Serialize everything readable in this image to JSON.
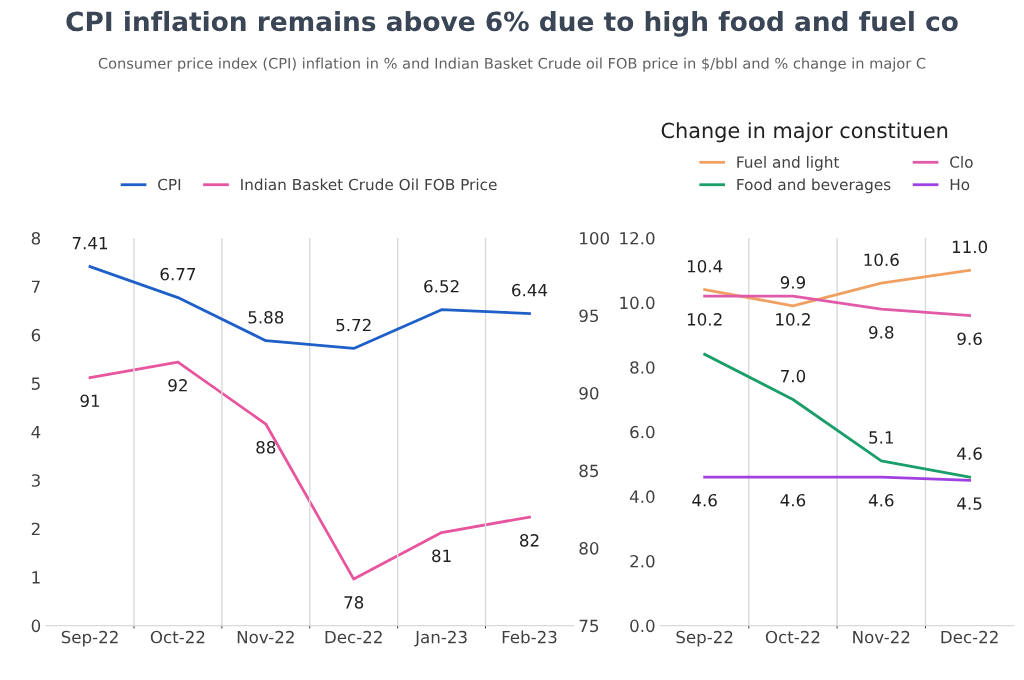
{
  "chart_data": [
    {
      "type": "line",
      "title": "CPI inflation remains above 6% due to high food and fuel co",
      "subtitle": "Consumer price index (CPI) inflation in % and Indian Basket Crude oil FOB price in $/bbl and % change in major C",
      "categories": [
        "Sep-22",
        "Oct-22",
        "Nov-22",
        "Dec-22",
        "Jan-23",
        "Feb-23"
      ],
      "series": [
        {
          "name": "CPI",
          "color": "#1f5fc8",
          "values": [
            7.41,
            6.77,
            5.88,
            5.72,
            6.52,
            6.44
          ]
        },
        {
          "name": "Indian Basket Crude Oil FOB Price",
          "color": "#e8559f",
          "axis": "y2",
          "values": [
            91,
            92,
            88,
            78,
            81,
            82
          ]
        }
      ],
      "ylim": [
        0,
        8
      ],
      "yticks": [
        0,
        1,
        2,
        3,
        4,
        5,
        6,
        7,
        8
      ],
      "y2lim": [
        75,
        100
      ],
      "y2ticks": [
        75,
        80,
        85,
        90,
        95,
        100
      ],
      "data_labels": true,
      "grid": "x",
      "legend": "top"
    },
    {
      "type": "line",
      "title": "Change in major constituen",
      "categories": [
        "Sep-22",
        "Oct-22",
        "Nov-22",
        "Dec-22"
      ],
      "series": [
        {
          "name": "Fuel and light",
          "color": "#f0a060",
          "values": [
            10.4,
            9.9,
            10.6,
            11.0
          ],
          "value_labels": [
            "10.4",
            "9.9",
            "10.6",
            "11.0"
          ]
        },
        {
          "name": "Clo",
          "color": "#e05aa8",
          "values": [
            10.2,
            10.2,
            9.8,
            9.6
          ],
          "value_labels": [
            "10.2",
            "10.2",
            "9.8",
            "9.6"
          ]
        },
        {
          "name": "Food and beverages",
          "color": "#1a9e6a",
          "values": [
            8.4,
            7.0,
            5.1,
            4.6
          ],
          "value_labels": [
            null,
            "7.0",
            "5.1",
            "4.6"
          ]
        },
        {
          "name": "Ho",
          "color": "#a040e0",
          "values": [
            4.6,
            4.6,
            4.6,
            4.5
          ],
          "value_labels": [
            "4.6",
            "4.6",
            "4.6",
            "4.5"
          ]
        }
      ],
      "ylim": [
        0,
        12
      ],
      "yticks": [
        {
          "value": 0,
          "label": "0.0"
        },
        {
          "value": 2,
          "label": "2.0"
        },
        {
          "value": 4,
          "label": "4.0"
        },
        {
          "value": 6,
          "label": "6.0"
        },
        {
          "value": 8,
          "label": "8.0"
        },
        {
          "value": 10,
          "label": "10.0"
        },
        {
          "value": 12,
          "label": "12.0"
        }
      ],
      "grid": "x",
      "legend": "top"
    }
  ]
}
